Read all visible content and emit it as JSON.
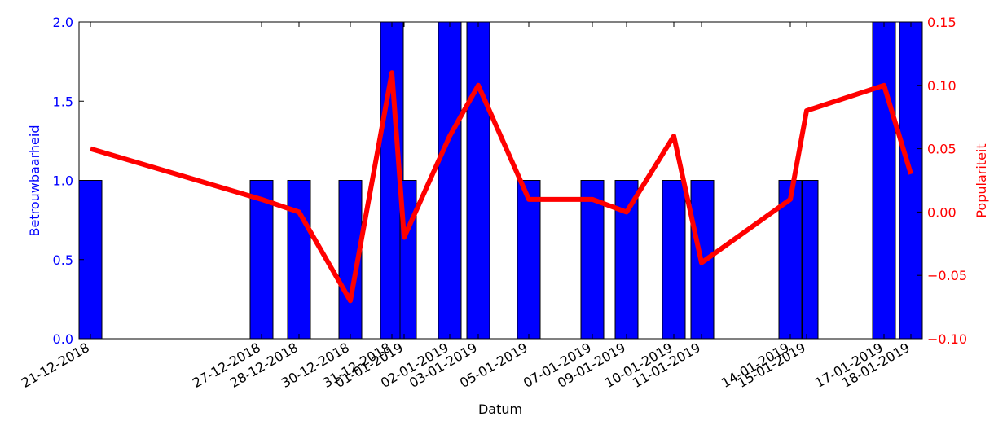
{
  "chart_data": {
    "type": "bar",
    "xlabel": "Datum",
    "ylabel_left": "Betrouwbaarheid",
    "ylabel_right": "Populariteit",
    "ylim_left": [
      0,
      2.0
    ],
    "ylim_right": [
      -0.1,
      0.15
    ],
    "yticks_left": [
      "0.0",
      "0.5",
      "1.0",
      "1.5",
      "2.0"
    ],
    "yticks_right": [
      "−0.10",
      "−0.05",
      "0.00",
      "0.05",
      "0.10",
      "0.15"
    ],
    "x_tick_labels": [
      "21-12-2018",
      "27-12-2018",
      "28-12-2018",
      "30-12-2018",
      "31-12-2018",
      "01-01-2019",
      "02-01-2019",
      "03-01-2019",
      "05-01-2019",
      "07-01-2019",
      "09-01-2019",
      "10-01-2019",
      "11-01-2019",
      "14-01-2019",
      "15-01-2019",
      "17-01-2019",
      "18-01-2019"
    ],
    "colors": {
      "bars": "#0000ff",
      "line": "#ff0000",
      "left_axis": "#0000ff",
      "right_axis": "#ff0000"
    },
    "series": [
      {
        "name": "Betrouwbaarheid",
        "type": "bar",
        "axis": "left",
        "values": [
          1,
          1,
          1,
          1,
          2,
          1,
          2,
          2,
          1,
          1,
          1,
          1,
          1,
          1,
          1,
          2,
          2
        ]
      },
      {
        "name": "Populariteit",
        "type": "line",
        "axis": "right",
        "values": [
          0.05,
          0.01,
          0.0,
          -0.07,
          0.11,
          -0.02,
          0.06,
          0.1,
          0.01,
          0.01,
          0.0,
          0.06,
          -0.04,
          0.01,
          0.08,
          0.1,
          0.03
        ]
      }
    ]
  }
}
